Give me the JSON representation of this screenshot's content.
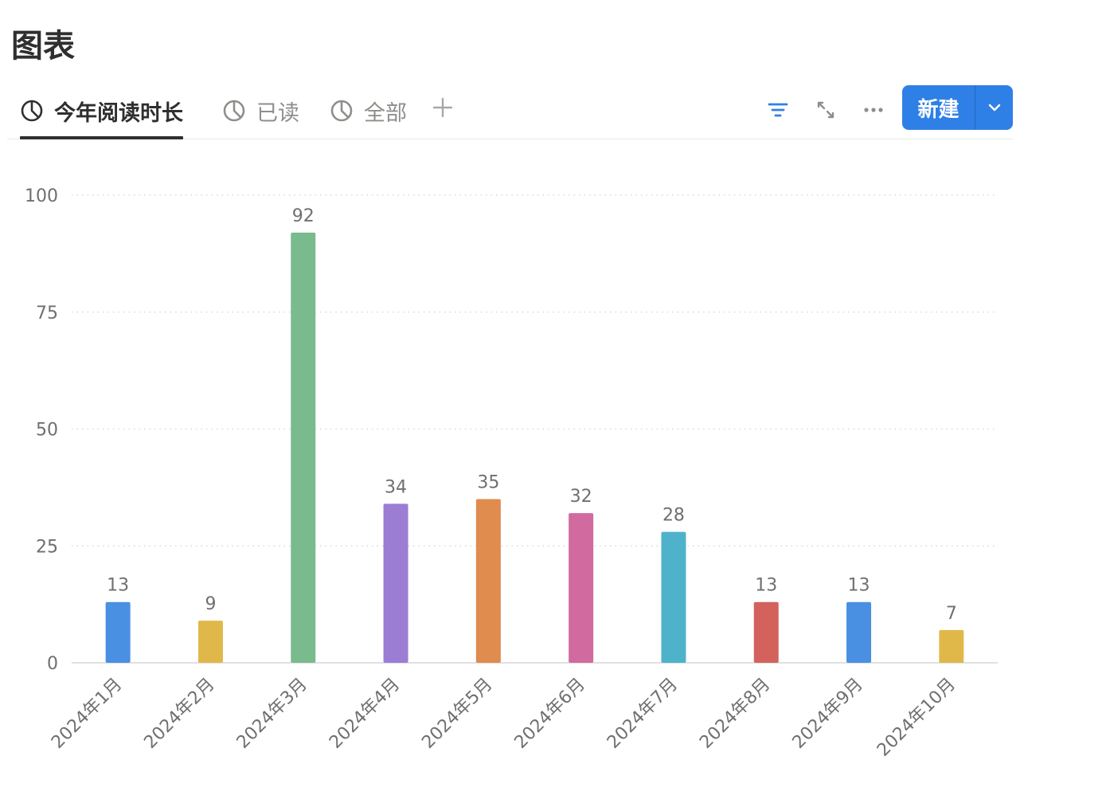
{
  "page": {
    "title": "图表"
  },
  "tabs": [
    {
      "label": "今年阅读时长",
      "icon": "pie-chart-icon",
      "active": true
    },
    {
      "label": "已读",
      "icon": "pie-chart-icon",
      "active": false
    },
    {
      "label": "全部",
      "icon": "pie-chart-icon",
      "active": false
    }
  ],
  "add_tab_icon": "plus-icon",
  "toolbar": {
    "filter_icon": "filter-icon",
    "expand_icon": "expand-icon",
    "more_icon": "more-icon",
    "new_label": "新建",
    "new_dropdown_icon": "chevron-down-icon"
  },
  "colors": {
    "accent": "#2f80e6",
    "grid": "#d9d9d9",
    "tick_text": "#6f6f6f"
  },
  "chart_data": {
    "type": "bar",
    "categories": [
      "2024年1月",
      "2024年2月",
      "2024年3月",
      "2024年4月",
      "2024年5月",
      "2024年6月",
      "2024年7月",
      "2024年8月",
      "2024年9月",
      "2024年10月"
    ],
    "values": [
      13,
      9,
      92,
      34,
      35,
      32,
      28,
      13,
      13,
      7
    ],
    "colors": [
      "#4a90e2",
      "#e0b84a",
      "#79bb8c",
      "#9b7dd4",
      "#df8c4e",
      "#d06a9f",
      "#4fb2cb",
      "#d3625c",
      "#4a90e2",
      "#e0b84a"
    ],
    "ylim": [
      0,
      100
    ],
    "yticks": [
      0,
      25,
      50,
      75,
      100
    ],
    "grid": true,
    "data_labels": true
  }
}
